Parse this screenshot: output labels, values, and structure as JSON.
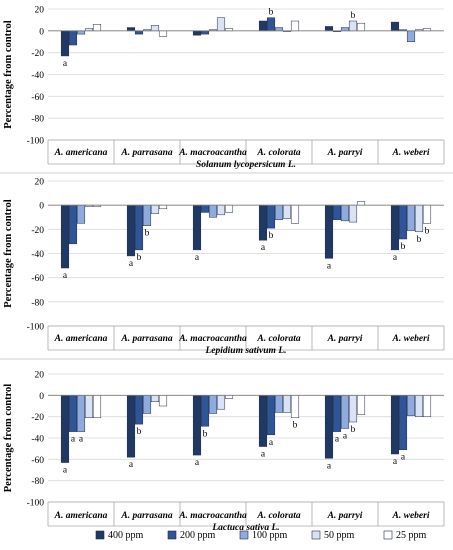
{
  "legend": [
    {
      "label": "400 ppm",
      "color": "#1f3864"
    },
    {
      "label": "200 ppm",
      "color": "#2f5597"
    },
    {
      "label": "100 ppm",
      "color": "#8faadc"
    },
    {
      "label": "50 ppm",
      "color": "#dae3f3"
    },
    {
      "label": "25 ppm",
      "color": "#ffffff"
    }
  ],
  "chart_data": [
    {
      "type": "bar",
      "title": "Solanum lycopersicum L.",
      "ylabel": "Percentage from control",
      "ylim": [
        -100,
        20
      ],
      "yticks": [
        20,
        0,
        -20,
        -40,
        -60,
        -80,
        -100
      ],
      "grid": true,
      "categories": [
        "A. americana",
        "A. parrasana",
        "A. macroacantha",
        "A. colorata",
        "A. parryi",
        "A. weberi"
      ],
      "series": [
        {
          "name": "400 ppm",
          "values": [
            -23,
            3,
            -4,
            9,
            4,
            8
          ]
        },
        {
          "name": "200 ppm",
          "values": [
            -13,
            -3,
            -3,
            12,
            0,
            1
          ]
        },
        {
          "name": "100 ppm",
          "values": [
            -3,
            1,
            1,
            3,
            3,
            -10
          ]
        },
        {
          "name": "50 ppm",
          "values": [
            2,
            5,
            12,
            0,
            9,
            1
          ]
        },
        {
          "name": "25 ppm",
          "values": [
            6,
            -5,
            2,
            9,
            7,
            2
          ]
        }
      ],
      "annotations": [
        {
          "category": 0,
          "series": 0,
          "text": "a"
        },
        {
          "category": 3,
          "series": 1,
          "text": "b"
        },
        {
          "category": 4,
          "series": 3,
          "text": "b"
        }
      ]
    },
    {
      "type": "bar",
      "title": "Lepidium sativum L.",
      "ylabel": "Percentage from control",
      "ylim": [
        -100,
        20
      ],
      "yticks": [
        20,
        0,
        -20,
        -40,
        -60,
        -80,
        -100
      ],
      "grid": true,
      "categories": [
        "A. americana",
        "A. parrasana",
        "A. macroacantha",
        "A. colorata",
        "A. parryi",
        "A. weberi"
      ],
      "series": [
        {
          "name": "400 ppm",
          "values": [
            -52,
            -42,
            -37,
            -29,
            -44,
            -37
          ]
        },
        {
          "name": "200 ppm",
          "values": [
            -32,
            -37,
            -6,
            -19,
            -12,
            -28
          ]
        },
        {
          "name": "100 ppm",
          "values": [
            -15,
            -17,
            -10,
            -12,
            -13,
            -21
          ]
        },
        {
          "name": "50 ppm",
          "values": [
            -1,
            -7,
            -8,
            -11,
            -14,
            -22
          ]
        },
        {
          "name": "25 ppm",
          "values": [
            -1,
            -3,
            -6,
            -15,
            3,
            -15
          ]
        }
      ],
      "annotations": [
        {
          "category": 0,
          "series": 0,
          "text": "a"
        },
        {
          "category": 1,
          "series": 0,
          "text": "a"
        },
        {
          "category": 1,
          "series": 1,
          "text": "b"
        },
        {
          "category": 1,
          "series": 2,
          "text": "b"
        },
        {
          "category": 2,
          "series": 0,
          "text": "a"
        },
        {
          "category": 3,
          "series": 0,
          "text": "a"
        },
        {
          "category": 3,
          "series": 1,
          "text": "b"
        },
        {
          "category": 4,
          "series": 0,
          "text": "a"
        },
        {
          "category": 5,
          "series": 0,
          "text": "a"
        },
        {
          "category": 5,
          "series": 1,
          "text": "b"
        },
        {
          "category": 5,
          "series": 3,
          "text": "b"
        },
        {
          "category": 5,
          "series": 4,
          "text": "b"
        }
      ]
    },
    {
      "type": "bar",
      "title": "Lactuca sativa L.",
      "ylabel": "Percentage from control",
      "ylim": [
        -100,
        20
      ],
      "yticks": [
        20,
        0,
        -20,
        -40,
        -60,
        -80,
        -100
      ],
      "grid": true,
      "categories": [
        "A. americana",
        "A. parrasana",
        "A. macroacantha",
        "A. colorata",
        "A. parryi",
        "A. weberi"
      ],
      "series": [
        {
          "name": "400 ppm",
          "values": [
            -63,
            -58,
            -56,
            -48,
            -59,
            -55
          ]
        },
        {
          "name": "200 ppm",
          "values": [
            -34,
            -27,
            -29,
            -37,
            -34,
            -51
          ]
        },
        {
          "name": "100 ppm",
          "values": [
            -34,
            -17,
            -17,
            -16,
            -31,
            -19
          ]
        },
        {
          "name": "50 ppm",
          "values": [
            -21,
            -6,
            -13,
            -16,
            -25,
            -20
          ]
        },
        {
          "name": "25 ppm",
          "values": [
            -21,
            -10,
            -3,
            -21,
            -18,
            -20
          ]
        }
      ],
      "annotations": [
        {
          "category": 0,
          "series": 0,
          "text": "a"
        },
        {
          "category": 0,
          "series": 1,
          "text": "a"
        },
        {
          "category": 0,
          "series": 2,
          "text": "a"
        },
        {
          "category": 1,
          "series": 0,
          "text": "a"
        },
        {
          "category": 1,
          "series": 1,
          "text": "b"
        },
        {
          "category": 2,
          "series": 0,
          "text": "a"
        },
        {
          "category": 2,
          "series": 1,
          "text": "b"
        },
        {
          "category": 3,
          "series": 0,
          "text": "a"
        },
        {
          "category": 3,
          "series": 1,
          "text": "a"
        },
        {
          "category": 3,
          "series": 4,
          "text": "b"
        },
        {
          "category": 4,
          "series": 0,
          "text": "a"
        },
        {
          "category": 4,
          "series": 1,
          "text": "a"
        },
        {
          "category": 4,
          "series": 2,
          "text": "a"
        },
        {
          "category": 4,
          "series": 3,
          "text": "b"
        },
        {
          "category": 5,
          "series": 0,
          "text": "a"
        },
        {
          "category": 5,
          "series": 1,
          "text": "a"
        }
      ]
    }
  ]
}
